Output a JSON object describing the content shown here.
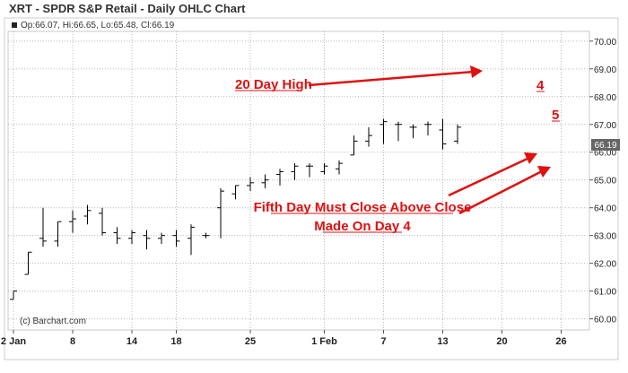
{
  "chart_data": {
    "type": "ohlc",
    "title": "XRT - SPDR S&P Retail - Daily OHLC Chart",
    "ohlc_readout": "Op:66.07, Hi:66.65, Lo:65.48, Cl:66.19",
    "last_price_label": "66.19",
    "credit": "(c) Barchart.com",
    "ylim": [
      59.6,
      70.35
    ],
    "y_ticks": [
      "60.00",
      "61.00",
      "62.00",
      "63.00",
      "64.00",
      "65.00",
      "66.00",
      "67.00",
      "68.00",
      "69.00",
      "70.00"
    ],
    "x_ticks": [
      {
        "label": "2 Jan",
        "index": 0
      },
      {
        "label": "8",
        "index": 4
      },
      {
        "label": "14",
        "index": 8
      },
      {
        "label": "18",
        "index": 11
      },
      {
        "label": "25",
        "index": 16
      },
      {
        "label": "1 Feb",
        "index": 21
      },
      {
        "label": "7",
        "index": 25
      },
      {
        "label": "13",
        "index": 29
      },
      {
        "label": "20",
        "index": 33
      },
      {
        "label": "26",
        "index": 37
      }
    ],
    "bars": [
      {
        "o": 60.7,
        "h": 61.0,
        "l": 60.7,
        "c": 61.0
      },
      {
        "o": 61.6,
        "h": 62.4,
        "l": 61.6,
        "c": 62.4
      },
      {
        "o": 62.9,
        "h": 64.0,
        "l": 62.6,
        "c": 62.8
      },
      {
        "o": 62.8,
        "h": 63.5,
        "l": 62.6,
        "c": 63.5
      },
      {
        "o": 63.5,
        "h": 63.9,
        "l": 63.1,
        "c": 63.6
      },
      {
        "o": 63.7,
        "h": 64.1,
        "l": 63.4,
        "c": 63.9
      },
      {
        "o": 63.8,
        "h": 64.0,
        "l": 63.0,
        "c": 63.1
      },
      {
        "o": 63.1,
        "h": 63.3,
        "l": 62.7,
        "c": 62.9
      },
      {
        "o": 62.9,
        "h": 63.2,
        "l": 62.7,
        "c": 63.1
      },
      {
        "o": 63.0,
        "h": 63.2,
        "l": 62.5,
        "c": 62.9
      },
      {
        "o": 62.9,
        "h": 63.1,
        "l": 62.7,
        "c": 63.0
      },
      {
        "o": 63.0,
        "h": 63.2,
        "l": 62.6,
        "c": 62.8
      },
      {
        "o": 62.9,
        "h": 63.4,
        "l": 62.3,
        "c": 63.3
      },
      {
        "o": 63.0,
        "h": 63.1,
        "l": 62.9,
        "c": 63.0
      },
      {
        "o": 64.0,
        "h": 64.7,
        "l": 62.9,
        "c": 64.6
      },
      {
        "o": 64.5,
        "h": 64.8,
        "l": 64.3,
        "c": 64.8
      },
      {
        "o": 64.8,
        "h": 65.1,
        "l": 64.6,
        "c": 64.9
      },
      {
        "o": 64.9,
        "h": 65.2,
        "l": 64.7,
        "c": 65.0
      },
      {
        "o": 65.2,
        "h": 65.4,
        "l": 64.8,
        "c": 65.3
      },
      {
        "o": 65.3,
        "h": 65.6,
        "l": 65.0,
        "c": 65.5
      },
      {
        "o": 65.5,
        "h": 65.6,
        "l": 65.1,
        "c": 65.5
      },
      {
        "o": 65.3,
        "h": 65.6,
        "l": 65.2,
        "c": 65.5
      },
      {
        "o": 65.4,
        "h": 65.7,
        "l": 65.2,
        "c": 65.6
      },
      {
        "o": 65.9,
        "h": 66.6,
        "l": 65.9,
        "c": 66.4
      },
      {
        "o": 66.4,
        "h": 66.9,
        "l": 66.2,
        "c": 66.6
      },
      {
        "o": 67.0,
        "h": 67.2,
        "l": 66.3,
        "c": 67.1
      },
      {
        "o": 67.0,
        "h": 67.1,
        "l": 66.4,
        "c": 67.0
      },
      {
        "o": 66.9,
        "h": 67.0,
        "l": 66.5,
        "c": 66.9
      },
      {
        "o": 67.0,
        "h": 67.1,
        "l": 66.6,
        "c": 67.0
      },
      {
        "o": 66.8,
        "h": 67.2,
        "l": 66.1,
        "c": 66.3
      },
      {
        "o": 66.4,
        "h": 67.0,
        "l": 66.3,
        "c": 66.9
      }
    ]
  },
  "annotations": {
    "high_label": "20 Day High",
    "day4_label": "4",
    "day5_label": "5",
    "rule_line1": "Fifth Day Must Close Above Close",
    "rule_line2": "Made On Day 4"
  },
  "colors": {
    "frame": "#cccccc",
    "grid": "#b9b9b9",
    "bar": "#000000",
    "annotation": "#e01010",
    "price_box": "#666666"
  }
}
